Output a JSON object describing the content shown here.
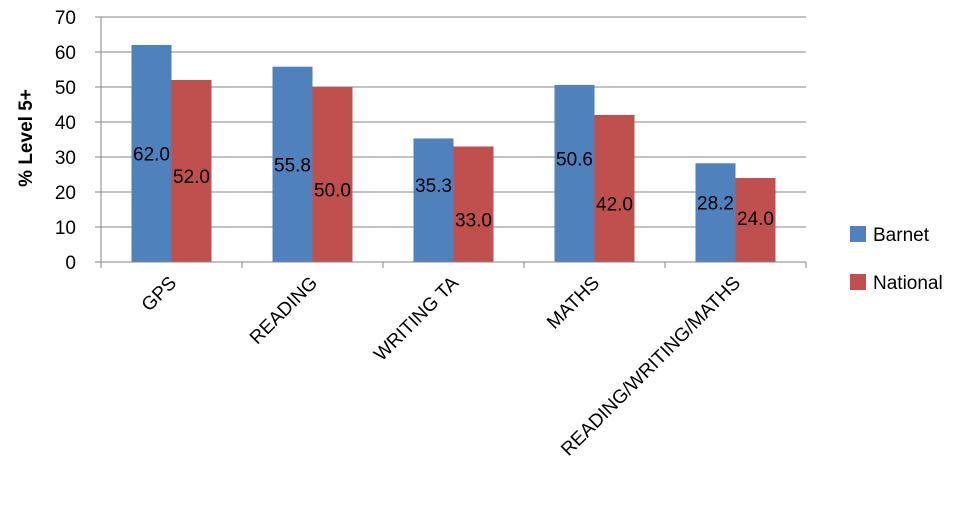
{
  "chart_data": {
    "type": "bar",
    "title": "",
    "xlabel": "",
    "ylabel": "% Level 5+",
    "ylim": [
      0,
      70
    ],
    "yticks": [
      0,
      10,
      20,
      30,
      40,
      50,
      60,
      70
    ],
    "grid": true,
    "legend_position": "right",
    "categories": [
      "GPS",
      "READING",
      "WRITING TA",
      "MATHS",
      "READING/WRITING/MATHS"
    ],
    "series": [
      {
        "name": "Barnet",
        "color": "#4F81BD",
        "values": [
          62.0,
          55.8,
          35.3,
          50.6,
          28.2
        ],
        "labels": [
          "62.0",
          "55.8",
          "35.3",
          "50.6",
          "28.2"
        ]
      },
      {
        "name": "National",
        "color": "#C0504D",
        "values": [
          52.0,
          50.0,
          33.0,
          42.0,
          24.0
        ],
        "labels": [
          "52.0",
          "50.0",
          "33.0",
          "42.0",
          "24.0"
        ]
      }
    ]
  }
}
